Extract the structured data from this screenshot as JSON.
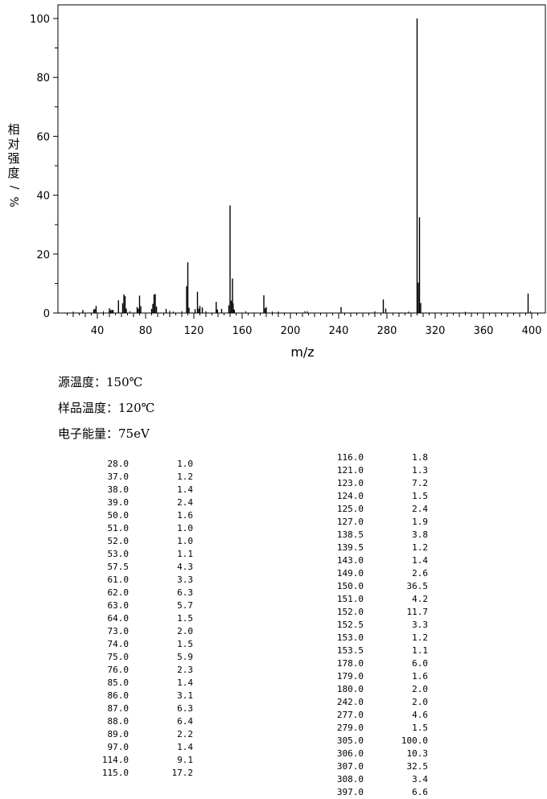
{
  "chart_data": {
    "type": "bar",
    "xlabel": "m/z",
    "ylabel": "相对强度/%",
    "xlim": [
      10,
      410
    ],
    "ylim": [
      0,
      100
    ],
    "xticks_major": [
      40,
      80,
      120,
      160,
      200,
      240,
      280,
      320,
      360,
      400
    ],
    "yticks_major": [
      0,
      20,
      40,
      60,
      80,
      100
    ],
    "peaks": [
      {
        "mz": 28.0,
        "ab": 1.0
      },
      {
        "mz": 37.0,
        "ab": 1.2
      },
      {
        "mz": 38.0,
        "ab": 1.4
      },
      {
        "mz": 39.0,
        "ab": 2.4
      },
      {
        "mz": 50.0,
        "ab": 1.6
      },
      {
        "mz": 51.0,
        "ab": 1.0
      },
      {
        "mz": 52.0,
        "ab": 1.0
      },
      {
        "mz": 53.0,
        "ab": 1.1
      },
      {
        "mz": 57.5,
        "ab": 4.3
      },
      {
        "mz": 61.0,
        "ab": 3.3
      },
      {
        "mz": 62.0,
        "ab": 6.3
      },
      {
        "mz": 63.0,
        "ab": 5.7
      },
      {
        "mz": 64.0,
        "ab": 1.5
      },
      {
        "mz": 73.0,
        "ab": 2.0
      },
      {
        "mz": 74.0,
        "ab": 1.5
      },
      {
        "mz": 75.0,
        "ab": 5.9
      },
      {
        "mz": 76.0,
        "ab": 2.3
      },
      {
        "mz": 85.0,
        "ab": 1.4
      },
      {
        "mz": 86.0,
        "ab": 3.1
      },
      {
        "mz": 87.0,
        "ab": 6.3
      },
      {
        "mz": 88.0,
        "ab": 6.4
      },
      {
        "mz": 89.0,
        "ab": 2.2
      },
      {
        "mz": 97.0,
        "ab": 1.4
      },
      {
        "mz": 114.0,
        "ab": 9.1
      },
      {
        "mz": 115.0,
        "ab": 17.2
      },
      {
        "mz": 116.0,
        "ab": 1.8
      },
      {
        "mz": 121.0,
        "ab": 1.3
      },
      {
        "mz": 123.0,
        "ab": 7.2
      },
      {
        "mz": 124.0,
        "ab": 1.5
      },
      {
        "mz": 125.0,
        "ab": 2.4
      },
      {
        "mz": 127.0,
        "ab": 1.9
      },
      {
        "mz": 138.5,
        "ab": 3.8
      },
      {
        "mz": 139.5,
        "ab": 1.2
      },
      {
        "mz": 143.0,
        "ab": 1.4
      },
      {
        "mz": 149.0,
        "ab": 2.6
      },
      {
        "mz": 150.0,
        "ab": 36.5
      },
      {
        "mz": 151.0,
        "ab": 4.2
      },
      {
        "mz": 152.0,
        "ab": 11.7
      },
      {
        "mz": 152.5,
        "ab": 3.3
      },
      {
        "mz": 153.0,
        "ab": 1.2
      },
      {
        "mz": 153.5,
        "ab": 1.1
      },
      {
        "mz": 178.0,
        "ab": 6.0
      },
      {
        "mz": 179.0,
        "ab": 1.6
      },
      {
        "mz": 180.0,
        "ab": 2.0
      },
      {
        "mz": 242.0,
        "ab": 2.0
      },
      {
        "mz": 277.0,
        "ab": 4.6
      },
      {
        "mz": 279.0,
        "ab": 1.5
      },
      {
        "mz": 305.0,
        "ab": 100.0
      },
      {
        "mz": 306.0,
        "ab": 10.3
      },
      {
        "mz": 307.0,
        "ab": 32.5
      },
      {
        "mz": 308.0,
        "ab": 3.4
      },
      {
        "mz": 397.0,
        "ab": 6.6
      }
    ],
    "minor_peaks_unlisted": [
      {
        "mz": 20,
        "ab": 0.5
      },
      {
        "mz": 45,
        "ab": 0.6
      },
      {
        "mz": 67,
        "ab": 0.6
      },
      {
        "mz": 100,
        "ab": 0.8
      },
      {
        "mz": 103,
        "ab": 0.5
      },
      {
        "mz": 110,
        "ab": 0.7
      },
      {
        "mz": 130,
        "ab": 0.6
      },
      {
        "mz": 163,
        "ab": 0.6
      },
      {
        "mz": 185,
        "ab": 0.5
      },
      {
        "mz": 190,
        "ab": 0.5
      },
      {
        "mz": 212,
        "ab": 0.7
      },
      {
        "mz": 214,
        "ab": 0.7
      },
      {
        "mz": 270,
        "ab": 0.6
      },
      {
        "mz": 298,
        "ab": 0.5
      },
      {
        "mz": 345,
        "ab": 0.4
      },
      {
        "mz": 399,
        "ab": 0.6
      }
    ]
  },
  "conditions": {
    "source_temp_label": "源温度：",
    "source_temp_value": "150℃",
    "sample_temp_label": "样品温度：",
    "sample_temp_value": "120℃",
    "energy_label": "电子能量：",
    "energy_value": "75eV"
  },
  "table_left": [
    [
      "28.0",
      "1.0"
    ],
    [
      "37.0",
      "1.2"
    ],
    [
      "38.0",
      "1.4"
    ],
    [
      "39.0",
      "2.4"
    ],
    [
      "50.0",
      "1.6"
    ],
    [
      "51.0",
      "1.0"
    ],
    [
      "52.0",
      "1.0"
    ],
    [
      "53.0",
      "1.1"
    ],
    [
      "57.5",
      "4.3"
    ],
    [
      "61.0",
      "3.3"
    ],
    [
      "62.0",
      "6.3"
    ],
    [
      "63.0",
      "5.7"
    ],
    [
      "64.0",
      "1.5"
    ],
    [
      "73.0",
      "2.0"
    ],
    [
      "74.0",
      "1.5"
    ],
    [
      "75.0",
      "5.9"
    ],
    [
      "76.0",
      "2.3"
    ],
    [
      "85.0",
      "1.4"
    ],
    [
      "86.0",
      "3.1"
    ],
    [
      "87.0",
      "6.3"
    ],
    [
      "88.0",
      "6.4"
    ],
    [
      "89.0",
      "2.2"
    ],
    [
      "97.0",
      "1.4"
    ],
    [
      "114.0",
      "9.1"
    ],
    [
      "115.0",
      "17.2"
    ]
  ],
  "table_right": [
    [
      "116.0",
      "1.8"
    ],
    [
      "121.0",
      "1.3"
    ],
    [
      "123.0",
      "7.2"
    ],
    [
      "124.0",
      "1.5"
    ],
    [
      "125.0",
      "2.4"
    ],
    [
      "127.0",
      "1.9"
    ],
    [
      "138.5",
      "3.8"
    ],
    [
      "139.5",
      "1.2"
    ],
    [
      "143.0",
      "1.4"
    ],
    [
      "149.0",
      "2.6"
    ],
    [
      "150.0",
      "36.5"
    ],
    [
      "151.0",
      "4.2"
    ],
    [
      "152.0",
      "11.7"
    ],
    [
      "152.5",
      "3.3"
    ],
    [
      "153.0",
      "1.2"
    ],
    [
      "153.5",
      "1.1"
    ],
    [
      "178.0",
      "6.0"
    ],
    [
      "179.0",
      "1.6"
    ],
    [
      "180.0",
      "2.0"
    ],
    [
      "242.0",
      "2.0"
    ],
    [
      "277.0",
      "4.6"
    ],
    [
      "279.0",
      "1.5"
    ],
    [
      "305.0",
      "100.0"
    ],
    [
      "306.0",
      "10.3"
    ],
    [
      "307.0",
      "32.5"
    ],
    [
      "308.0",
      "3.4"
    ],
    [
      "397.0",
      "6.6"
    ]
  ]
}
